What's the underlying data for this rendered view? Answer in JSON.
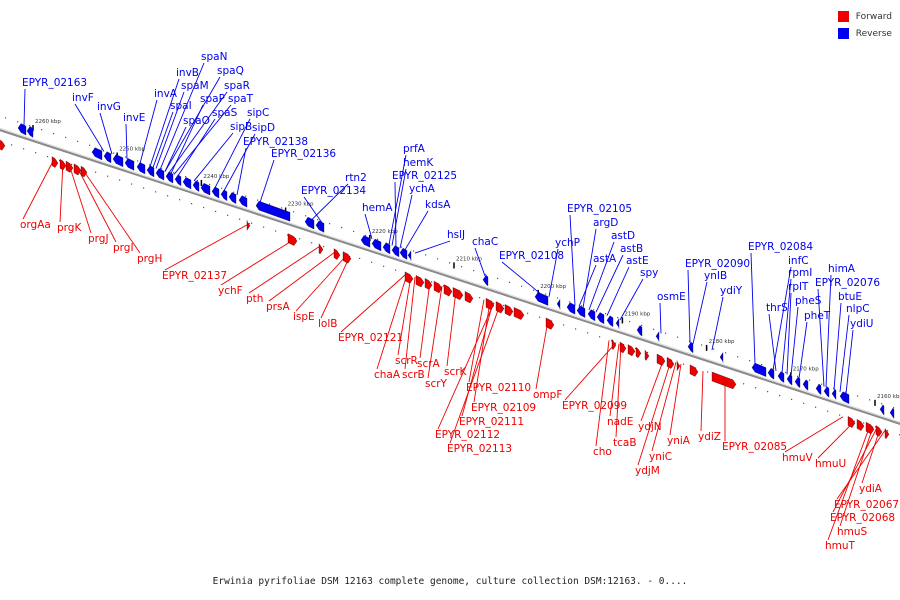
{
  "legend": [
    {
      "label": "Forward",
      "color": "#ee0000"
    },
    {
      "label": "Reverse",
      "color": "#0000ee"
    }
  ],
  "caption": "Erwinia pyrifoliae DSM 12163 complete genome, culture collection DSM:12163. - 0....",
  "ticks": [
    {
      "label": "2260 kbp",
      "bp": 2260000
    },
    {
      "label": "2250 kbp",
      "bp": 2250000
    },
    {
      "label": "2240 kbp",
      "bp": 2240000
    },
    {
      "label": "2230 kbp",
      "bp": 2230000
    },
    {
      "label": "2220 kbp",
      "bp": 2220000
    },
    {
      "label": "2210 kbp",
      "bp": 2210000
    },
    {
      "label": "2200 kbp",
      "bp": 2200000
    },
    {
      "label": "2190 kbp",
      "bp": 2190000
    },
    {
      "label": "2180 kbp",
      "bp": 2180000
    },
    {
      "label": "2170 kbp",
      "bp": 2170000
    },
    {
      "label": "2160 kbp",
      "bp": 2160000
    }
  ],
  "reverse_genes": [
    "EPYR_02163",
    "invF",
    "invG",
    "invE",
    "invA",
    "invB",
    "spaN",
    "spaQ",
    "spaR",
    "spaT",
    "spaM",
    "spaP",
    "spaI",
    "spaS",
    "spaO",
    "sipB",
    "sipC",
    "sipD",
    "EPYR_02138",
    "EPYR_02136",
    "rtn2",
    "EPYR_02134",
    "prfA",
    "hemK",
    "EPYR_02125",
    "ychA",
    "kdsA",
    "hemA",
    "hslJ",
    "chaC",
    "EPYR_02108",
    "ychP",
    "EPYR_02105",
    "argD",
    "astD",
    "astB",
    "astA",
    "astE",
    "spy",
    "osmE",
    "EPYR_02090",
    "ynIB",
    "ydiY",
    "EPYR_02084",
    "infC",
    "rpmI",
    "rplT",
    "pheS",
    "pheT",
    "thrS",
    "himA",
    "EPYR_02076",
    "btuE",
    "nlpC",
    "ydiU"
  ],
  "forward_genes": [
    "orgAa",
    "prgK",
    "prgJ",
    "prgI",
    "prgH",
    "EPYR_02137",
    "ychF",
    "pth",
    "prsA",
    "ispE",
    "lolB",
    "EPYR_02121",
    "chaA",
    "scrR",
    "scrB",
    "scrA",
    "scrY",
    "scrK",
    "EPYR_02110",
    "EPYR_02109",
    "EPYR_02111",
    "EPYR_02112",
    "EPYR_02113",
    "ompF",
    "EPYR_02099",
    "cho",
    "nadE",
    "tcaB",
    "ydjN",
    "ydjM",
    "yniC",
    "yniA",
    "ydiZ",
    "EPYR_02085",
    "hmuV",
    "hmuU",
    "ydiA",
    "EPYR_02067",
    "EPYR_02068",
    "hmuS",
    "hmuT"
  ]
}
